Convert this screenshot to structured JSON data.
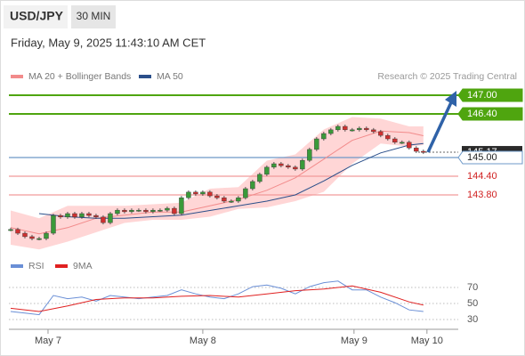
{
  "header": {
    "symbol": "USD/JPY",
    "interval": "30 MIN",
    "datetime": "Friday, May 9, 2025 11:43:10 AM CET",
    "credit": "Research © 2025 Trading Central"
  },
  "chart_data": [
    {
      "type": "candlestick",
      "xlim": [
        -0.25,
        62.9
      ],
      "ylim": [
        142,
        147.8
      ],
      "xticks": [
        {
          "value": 5.25,
          "label": "May 7"
        },
        {
          "value": 27,
          "label": "May 8"
        },
        {
          "value": 48.25,
          "label": "May 9"
        },
        {
          "value": 58.5,
          "label": "May 10"
        }
      ],
      "up_color": "#3a9a3a",
      "down_color": "#d03030",
      "closes": [
        142.69,
        142.57,
        142.46,
        142.4,
        142.4,
        142.57,
        143.14,
        143.09,
        143.2,
        143.09,
        143.2,
        143.14,
        143.09,
        142.91,
        143.2,
        143.31,
        143.26,
        143.31,
        143.31,
        143.26,
        143.31,
        143.31,
        143.37,
        143.2,
        143.71,
        143.89,
        143.83,
        143.89,
        143.77,
        143.71,
        143.6,
        143.6,
        143.71,
        144.0,
        144.23,
        144.46,
        144.69,
        144.8,
        144.74,
        144.69,
        144.63,
        144.91,
        145.26,
        145.6,
        145.77,
        145.89,
        146.0,
        145.89,
        145.89,
        145.94,
        145.89,
        145.83,
        145.71,
        145.6,
        145.49,
        145.49,
        145.31,
        145.2,
        145.17
      ],
      "series": [
        {
          "name": "MA 20 + Bollinger Bands",
          "color": "#f28b8b",
          "band_color": "#ffd6d6",
          "x": [
            0,
            4,
            8,
            12,
            16,
            20,
            24,
            28,
            32,
            36,
            40,
            44,
            48,
            52,
            56,
            58
          ],
          "values": [
            142.75,
            142.55,
            142.75,
            143.05,
            143.15,
            143.25,
            143.25,
            143.45,
            143.65,
            143.95,
            144.35,
            144.95,
            145.55,
            145.85,
            145.8,
            145.7
          ],
          "upper": [
            143.3,
            143.05,
            143.45,
            143.45,
            143.45,
            143.5,
            143.55,
            144.0,
            144.05,
            144.9,
            145.1,
            145.9,
            146.3,
            146.25,
            146.0,
            146.0
          ],
          "lower": [
            142.2,
            142.05,
            142.3,
            142.6,
            142.9,
            143.0,
            143.0,
            143.1,
            143.35,
            143.4,
            143.6,
            143.9,
            144.8,
            145.45,
            145.35,
            145.4
          ]
        },
        {
          "name": "MA 50",
          "color": "#2b4f8a",
          "x": [
            0,
            4,
            8,
            12,
            16,
            20,
            24,
            28,
            32,
            36,
            40,
            44,
            48,
            52,
            56,
            58
          ],
          "values": [
            null,
            143.2,
            143.1,
            143.05,
            143.05,
            143.1,
            143.15,
            143.3,
            143.45,
            143.6,
            143.8,
            144.25,
            144.75,
            145.15,
            145.4,
            145.45
          ]
        }
      ],
      "levels": [
        {
          "value": 147.0,
          "label": "147.00",
          "color": "#4fa50f",
          "boxed": true
        },
        {
          "value": 146.4,
          "label": "146.40",
          "color": "#4fa50f",
          "boxed": true
        },
        {
          "value": 145.0,
          "label": "145.00",
          "color": "#6d98c8",
          "boxed": true
        },
        {
          "value": 144.4,
          "label": "144.40",
          "color": "#f29a9a",
          "text_color": "#d02020",
          "boxed": false
        },
        {
          "value": 143.8,
          "label": "143.80",
          "color": "#f29a9a",
          "text_color": "#d02020",
          "boxed": false
        }
      ],
      "current_price": {
        "value": 145.17,
        "label": "145.17"
      }
    },
    {
      "type": "line",
      "xlim": [
        -0.25,
        62.9
      ],
      "ylim": [
        20,
        90
      ],
      "yticks": [
        30,
        50,
        70
      ],
      "series": [
        {
          "name": "RSI",
          "color": "#6a8fd6",
          "x": [
            0,
            2,
            4,
            6,
            8,
            10,
            12,
            14,
            16,
            18,
            20,
            22,
            24,
            26,
            28,
            30,
            32,
            34,
            36,
            38,
            40,
            42,
            44,
            46,
            48,
            50,
            52,
            54,
            56,
            58
          ],
          "values": [
            40,
            38,
            36,
            60,
            56,
            58,
            53,
            60,
            58,
            56,
            58,
            60,
            67,
            62,
            58,
            56,
            62,
            71,
            73,
            69,
            62,
            71,
            76,
            78,
            67,
            67,
            58,
            51,
            42,
            40
          ]
        },
        {
          "name": "9MA",
          "color": "#e02020",
          "x": [
            0,
            4,
            8,
            12,
            16,
            20,
            24,
            28,
            32,
            36,
            40,
            44,
            48,
            52,
            56,
            58
          ],
          "values": [
            44,
            40,
            47,
            55,
            57,
            57,
            59,
            60,
            58,
            62,
            66,
            68,
            72,
            64,
            52,
            48
          ]
        }
      ]
    }
  ]
}
